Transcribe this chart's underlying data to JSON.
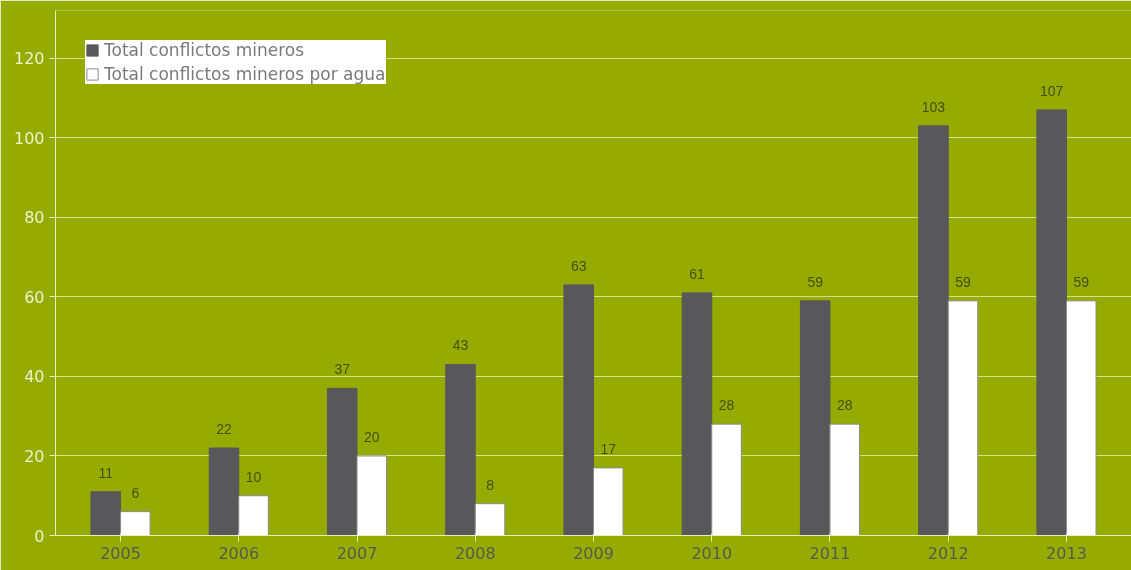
{
  "chart_data": {
    "type": "bar",
    "categories": [
      "2005",
      "2006",
      "2007",
      "2008",
      "2009",
      "2010",
      "2011",
      "2012",
      "2013"
    ],
    "series": [
      {
        "name": "Total conflictos mineros",
        "color": "#58585a",
        "values": [
          11,
          22,
          37,
          43,
          63,
          61,
          59,
          103,
          107
        ]
      },
      {
        "name": "Total conflictos mineros por agua",
        "color": "#ffffff",
        "values": [
          6,
          10,
          20,
          8,
          17,
          28,
          28,
          59,
          59
        ]
      }
    ],
    "ylim": [
      0,
      132
    ],
    "yticks": [
      0,
      20,
      40,
      60,
      80,
      100,
      120
    ],
    "grid": "y",
    "legend": "top left",
    "data_labels": true
  }
}
